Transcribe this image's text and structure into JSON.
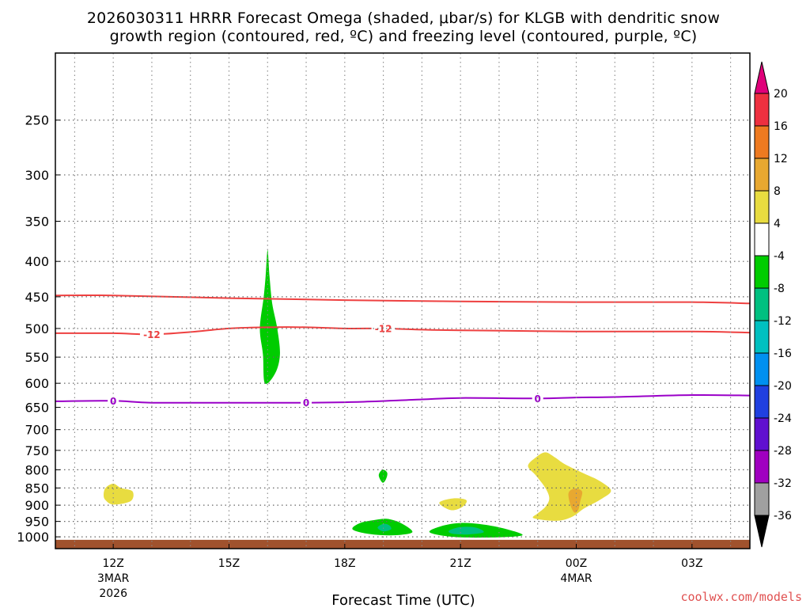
{
  "chart_data": {
    "type": "heatmap",
    "title_line1": "2026030311 HRRR Forecast Omega (shaded, μbar/s) for KLGB with dendritic snow",
    "title_line2": "growth region (contoured, red, ºC) and freezing level (contoured, purple, ºC)",
    "xlabel": "Forecast Time (UTC)",
    "credit": "coolwx.com/models",
    "y_scale": "log",
    "ylim": [
      1040,
      200
    ],
    "y_ticks": [
      250,
      300,
      350,
      400,
      450,
      500,
      550,
      600,
      650,
      700,
      750,
      800,
      850,
      900,
      950,
      1000
    ],
    "xlim": [
      10.5,
      28.5
    ],
    "x_ticks": [
      {
        "x": 12,
        "label": "12Z",
        "sub1": "3MAR",
        "sub2": "2026"
      },
      {
        "x": 15,
        "label": "15Z",
        "sub1": "",
        "sub2": ""
      },
      {
        "x": 18,
        "label": "18Z",
        "sub1": "",
        "sub2": ""
      },
      {
        "x": 21,
        "label": "21Z",
        "sub1": "",
        "sub2": ""
      },
      {
        "x": 24,
        "label": "00Z",
        "sub1": "4MAR",
        "sub2": ""
      },
      {
        "x": 27,
        "label": "03Z",
        "sub1": "",
        "sub2": ""
      }
    ],
    "grid": true,
    "colorbar": {
      "labels": [
        "20",
        "16",
        "12",
        "8",
        "4",
        "-4",
        "-8",
        "-12",
        "-16",
        "-20",
        "-24",
        "-28",
        "-32",
        "-36"
      ],
      "colors": [
        "#ee3040",
        "#ee7a20",
        "#e8a830",
        "#e8dc40",
        "#ffffff",
        "#00cc00",
        "#00c080",
        "#00c0c0",
        "#0090f0",
        "#2040e0",
        "#6010d0",
        "#a000c0",
        "#a0a0a0"
      ],
      "top_color": "#e0007a",
      "bottom_color": "#000000"
    },
    "contours": [
      {
        "name": "dendritic-top",
        "color": "#ee4040",
        "label": "",
        "points": [
          [
            10.5,
            448
          ],
          [
            12,
            448
          ],
          [
            15,
            452
          ],
          [
            18,
            455
          ],
          [
            21,
            457
          ],
          [
            24,
            458
          ],
          [
            27,
            458
          ],
          [
            28.5,
            460
          ]
        ]
      },
      {
        "name": "dendritic-bottom",
        "color": "#ee4040",
        "label": "-12",
        "label_x": [
          13,
          19
        ],
        "points": [
          [
            10.5,
            508
          ],
          [
            12,
            508
          ],
          [
            13,
            510
          ],
          [
            14,
            506
          ],
          [
            15,
            500
          ],
          [
            16,
            498
          ],
          [
            17,
            498
          ],
          [
            18,
            500
          ],
          [
            19,
            500
          ],
          [
            20,
            502
          ],
          [
            21,
            503
          ],
          [
            24,
            505
          ],
          [
            27,
            505
          ],
          [
            28.5,
            507
          ]
        ]
      },
      {
        "name": "freezing-level",
        "color": "#9a00c8",
        "label": "0",
        "label_x": [
          12,
          17,
          23
        ],
        "points": [
          [
            10.5,
            637
          ],
          [
            12,
            636
          ],
          [
            13,
            640
          ],
          [
            15,
            640
          ],
          [
            17,
            640
          ],
          [
            18.5,
            638
          ],
          [
            20,
            633
          ],
          [
            21,
            630
          ],
          [
            23,
            631
          ],
          [
            24,
            629
          ],
          [
            25,
            628
          ],
          [
            27,
            624
          ],
          [
            28.5,
            625
          ]
        ]
      }
    ],
    "shaded_regions": [
      {
        "name": "green-column-1600z",
        "color": "#00cc00",
        "points": [
          [
            15.93,
            600
          ],
          [
            15.88,
            545
          ],
          [
            15.8,
            500
          ],
          [
            15.9,
            450
          ],
          [
            15.95,
            420
          ],
          [
            16,
            385
          ],
          [
            16.05,
            420
          ],
          [
            16.12,
            460
          ],
          [
            16.25,
            500
          ],
          [
            16.32,
            545
          ],
          [
            16.2,
            580
          ]
        ]
      },
      {
        "name": "yellow-blob-1200z",
        "color": "#e8dc40",
        "points": [
          [
            11.75,
            870
          ],
          [
            11.8,
            850
          ],
          [
            12.0,
            838
          ],
          [
            12.2,
            850
          ],
          [
            12.5,
            860
          ],
          [
            12.45,
            888
          ],
          [
            12.0,
            898
          ],
          [
            11.8,
            885
          ]
        ]
      },
      {
        "name": "green-blob-1900z",
        "color": "#00cc00",
        "points": [
          [
            18.88,
            815
          ],
          [
            18.98,
            800
          ],
          [
            19.1,
            808
          ],
          [
            19.07,
            825
          ],
          [
            18.98,
            835
          ]
        ]
      },
      {
        "name": "green-lens-1900z",
        "color": "#00cc00",
        "points": [
          [
            18.2,
            975
          ],
          [
            18.4,
            955
          ],
          [
            18.8,
            945
          ],
          [
            19.1,
            942
          ],
          [
            19.45,
            955
          ],
          [
            19.75,
            985
          ],
          [
            19.2,
            995
          ],
          [
            18.6,
            990
          ]
        ]
      },
      {
        "name": "teal-core-1900z",
        "color": "#00c080",
        "points": [
          [
            18.85,
            970
          ],
          [
            19.0,
            958
          ],
          [
            19.15,
            962
          ],
          [
            19.2,
            975
          ],
          [
            19.0,
            982
          ]
        ]
      },
      {
        "name": "yellow-blob-2100z",
        "color": "#e8dc40",
        "points": [
          [
            20.45,
            893
          ],
          [
            20.8,
            880
          ],
          [
            21.15,
            885
          ],
          [
            21.05,
            905
          ],
          [
            20.75,
            915
          ]
        ]
      },
      {
        "name": "green-lens-2100z",
        "color": "#00cc00",
        "points": [
          [
            20.2,
            985
          ],
          [
            20.5,
            965
          ],
          [
            21.0,
            955
          ],
          [
            21.6,
            960
          ],
          [
            22.2,
            975
          ],
          [
            22.6,
            995
          ],
          [
            21.8,
            1002
          ],
          [
            20.8,
            1000
          ]
        ]
      },
      {
        "name": "teal-core-2100z",
        "color": "#00c080",
        "points": [
          [
            20.7,
            980
          ],
          [
            21.0,
            968
          ],
          [
            21.4,
            970
          ],
          [
            21.6,
            985
          ],
          [
            21.2,
            992
          ],
          [
            20.8,
            990
          ]
        ]
      },
      {
        "name": "yellow-region-2330z",
        "color": "#e8dc40",
        "points": [
          [
            22.75,
            790
          ],
          [
            22.95,
            768
          ],
          [
            23.2,
            755
          ],
          [
            23.45,
            768
          ],
          [
            23.7,
            785
          ],
          [
            24.2,
            810
          ],
          [
            24.6,
            830
          ],
          [
            24.9,
            858
          ],
          [
            24.6,
            885
          ],
          [
            24.2,
            910
          ],
          [
            23.9,
            935
          ],
          [
            23.5,
            948
          ],
          [
            22.9,
            940
          ],
          [
            23.0,
            925
          ],
          [
            23.2,
            905
          ],
          [
            23.3,
            880
          ],
          [
            23.2,
            850
          ],
          [
            22.95,
            815
          ]
        ]
      },
      {
        "name": "orange-core-0000z",
        "color": "#e8a830",
        "points": [
          [
            23.8,
            865
          ],
          [
            23.95,
            852
          ],
          [
            24.15,
            860
          ],
          [
            24.1,
            890
          ],
          [
            24.05,
            915
          ],
          [
            23.95,
            922
          ],
          [
            23.85,
            900
          ]
        ]
      }
    ],
    "ground": {
      "color": "#a0522d"
    }
  }
}
